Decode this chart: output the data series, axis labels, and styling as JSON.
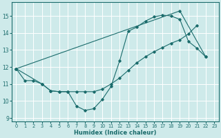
{
  "xlabel": "Humidex (Indice chaleur)",
  "bg_color": "#ceeaea",
  "grid_color": "#ffffff",
  "line_color": "#1a6b6b",
  "xlim": [
    -0.5,
    23.5
  ],
  "ylim": [
    8.8,
    15.8
  ],
  "yticks": [
    9,
    10,
    11,
    12,
    13,
    14,
    15
  ],
  "xticks": [
    0,
    1,
    2,
    3,
    4,
    5,
    6,
    7,
    8,
    9,
    10,
    11,
    12,
    13,
    14,
    15,
    16,
    17,
    18,
    19,
    20,
    21,
    22,
    23
  ],
  "line1_x": [
    0,
    1,
    2,
    3,
    4,
    5,
    6,
    7,
    8,
    9,
    10,
    11,
    12,
    13,
    14,
    15,
    16,
    17,
    18,
    19,
    20,
    21,
    22
  ],
  "line1_y": [
    11.9,
    11.2,
    11.2,
    11.0,
    10.6,
    10.55,
    10.55,
    9.7,
    9.45,
    9.55,
    10.1,
    10.85,
    12.35,
    14.1,
    14.35,
    14.7,
    14.95,
    15.05,
    15.0,
    14.8,
    13.5,
    13.1,
    12.6
  ],
  "line2_x": [
    0,
    3,
    4,
    5,
    6,
    7,
    8,
    9,
    10,
    11,
    12,
    13,
    14,
    15,
    16,
    17,
    18,
    19,
    20,
    21
  ],
  "line2_y": [
    11.9,
    11.0,
    10.6,
    10.55,
    10.55,
    10.55,
    10.55,
    10.55,
    10.7,
    11.0,
    11.35,
    11.8,
    12.25,
    12.6,
    12.9,
    13.15,
    13.4,
    13.6,
    13.95,
    14.45
  ],
  "line3_x": [
    0,
    19,
    22
  ],
  "line3_y": [
    11.9,
    15.3,
    12.6
  ]
}
